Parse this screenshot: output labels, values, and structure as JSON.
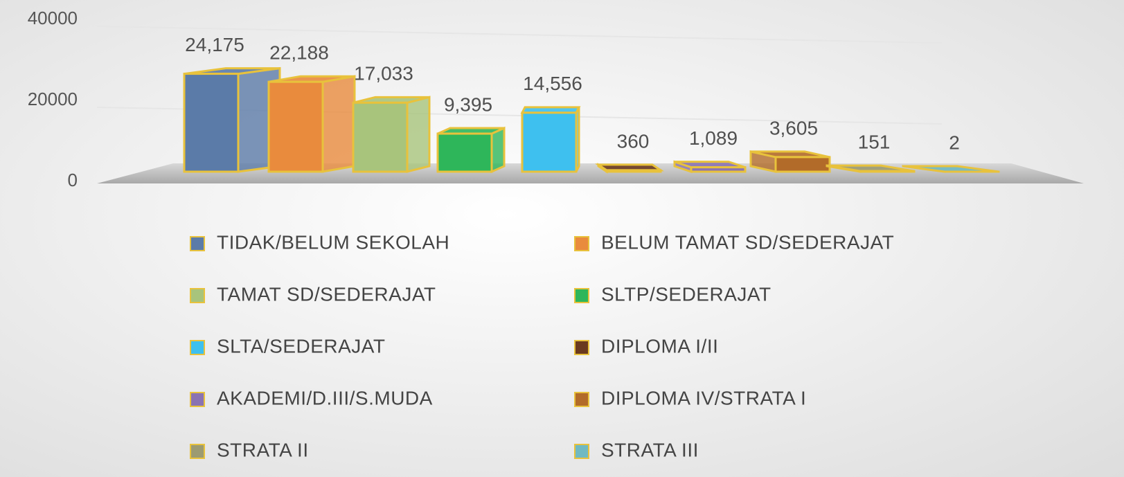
{
  "chart_data": {
    "type": "bar3d",
    "categories": [
      "TIDAK/BELUM SEKOLAH",
      "BELUM TAMAT SD/SEDERAJAT",
      "TAMAT SD/SEDERAJAT",
      "SLTP/SEDERAJAT",
      "SLTA/SEDERAJAT",
      "DIPLOMA I/II",
      "AKADEMI/D.III/S.MUDA",
      "DIPLOMA IV/STRATA I",
      "STRATA II",
      "STRATA III"
    ],
    "values": [
      24175,
      22188,
      17033,
      9395,
      14556,
      360,
      1089,
      3605,
      151,
      2
    ],
    "value_labels": [
      "24,175",
      "22,188",
      "17,033",
      "9,395",
      "14,556",
      "360",
      "1,089",
      "3,605",
      "151",
      "2"
    ],
    "colors": [
      "#5b7ba8",
      "#e98b3d",
      "#a8c47c",
      "#2eb65a",
      "#3ec0ef",
      "#6a3a1f",
      "#8a73b2",
      "#b26b29",
      "#9c9b72",
      "#70b9c2"
    ],
    "ylim": [
      0,
      40000
    ],
    "yticks": [
      0,
      20000,
      40000
    ],
    "grid": true,
    "legend": "bottom"
  }
}
